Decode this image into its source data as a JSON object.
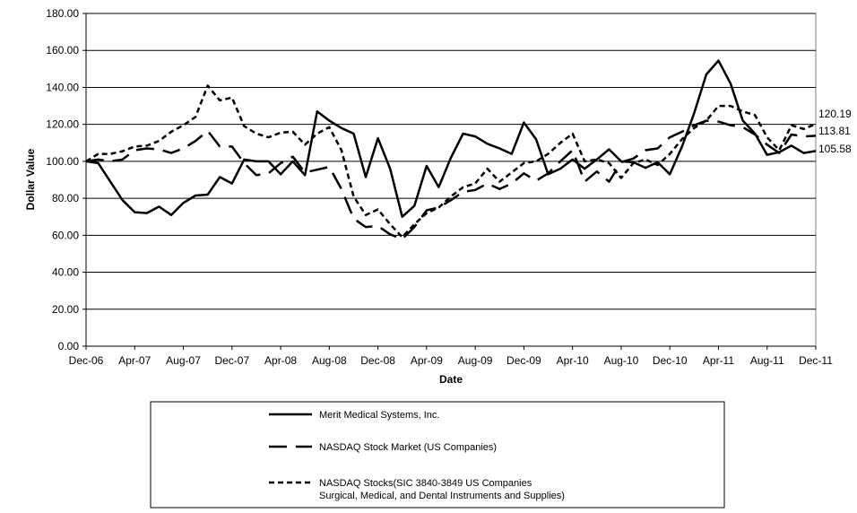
{
  "chart_data": {
    "type": "line",
    "xlabel": "Date",
    "ylabel": "Dollar Value",
    "ylim": [
      0,
      180
    ],
    "yticks": [
      "0.00",
      "20.00",
      "40.00",
      "60.00",
      "80.00",
      "100.00",
      "120.00",
      "140.00",
      "160.00",
      "180.00"
    ],
    "xtick_labels": [
      "Dec-06",
      "Apr-07",
      "Aug-07",
      "Dec-07",
      "Apr-08",
      "Aug-08",
      "Dec-08",
      "Apr-09",
      "Aug-09",
      "Dec-09",
      "Apr-10",
      "Aug-10",
      "Dec-10",
      "Apr-11",
      "Aug-11",
      "Dec-11"
    ],
    "grid": "horizontal",
    "legend_position": "bottom",
    "x": [
      "Dec-06",
      "Jan-07",
      "Feb-07",
      "Mar-07",
      "Apr-07",
      "May-07",
      "Jun-07",
      "Jul-07",
      "Aug-07",
      "Sep-07",
      "Oct-07",
      "Nov-07",
      "Dec-07",
      "Jan-08",
      "Feb-08",
      "Mar-08",
      "Apr-08",
      "May-08",
      "Jun-08",
      "Jul-08",
      "Aug-08",
      "Sep-08",
      "Oct-08",
      "Nov-08",
      "Dec-08",
      "Jan-09",
      "Feb-09",
      "Mar-09",
      "Apr-09",
      "May-09",
      "Jun-09",
      "Jul-09",
      "Aug-09",
      "Sep-09",
      "Oct-09",
      "Nov-09",
      "Dec-09",
      "Jan-10",
      "Feb-10",
      "Mar-10",
      "Apr-10",
      "May-10",
      "Jun-10",
      "Jul-10",
      "Aug-10",
      "Sep-10",
      "Oct-10",
      "Nov-10",
      "Dec-10",
      "Jan-11",
      "Feb-11",
      "Mar-11",
      "Apr-11",
      "May-11",
      "Jun-11",
      "Jul-11",
      "Aug-11",
      "Sep-11",
      "Oct-11",
      "Nov-11",
      "Dec-11"
    ],
    "series": [
      {
        "name": "Merit Medical Systems, Inc.",
        "style": "solid",
        "values": [
          100,
          99,
          89,
          79,
          72.5,
          72,
          75.5,
          71,
          77.5,
          81.5,
          82,
          91.5,
          88,
          101,
          100,
          100,
          93,
          100,
          92.5,
          127,
          122,
          118,
          115,
          91.5,
          112.5,
          96,
          70,
          76,
          97.5,
          86,
          102,
          115,
          113.5,
          109.5,
          107,
          104,
          121,
          112,
          93,
          96,
          101,
          96,
          101,
          106.5,
          100,
          99.5,
          96.5,
          99.5,
          93,
          108,
          126,
          147,
          154.5,
          142,
          122,
          115,
          103.5,
          105,
          108.5,
          104.5,
          105.58
        ]
      },
      {
        "name": "NASDAQ Stock Market (US Companies)",
        "style": "dashed",
        "values": [
          100,
          101,
          100,
          101,
          106,
          107,
          106.5,
          104.5,
          107,
          111,
          116.5,
          108,
          108,
          99,
          92.5,
          93.5,
          99,
          102.5,
          94,
          95.5,
          97,
          85,
          69,
          64.5,
          65,
          60.5,
          58,
          64.5,
          73.5,
          75,
          79,
          83.5,
          84.5,
          88,
          85,
          88,
          93.5,
          89.5,
          93.5,
          100,
          106,
          89,
          94.5,
          89,
          99.5,
          101.5,
          106,
          107,
          113,
          116,
          119.5,
          122,
          121.5,
          119.5,
          118.5,
          114.5,
          109,
          104.5,
          114.5,
          113.5,
          113.81
        ]
      },
      {
        "name": "NASDAQ Stocks(SIC  3840-3849 US Companies\nSurgical, Medical, and Dental Instruments and Supplies)",
        "style": "dotted",
        "values": [
          100,
          104,
          104,
          105.5,
          108,
          108.5,
          111,
          116,
          119.5,
          124,
          141,
          133,
          134.5,
          119,
          115,
          113,
          115.5,
          116,
          109,
          115,
          118.5,
          106,
          81,
          71,
          74,
          66,
          59,
          66,
          72,
          75,
          81,
          86,
          88,
          96,
          89,
          94,
          99,
          100,
          104,
          110,
          115,
          100,
          101,
          99,
          91,
          99,
          101,
          98,
          104,
          112,
          118,
          122,
          130,
          130,
          127,
          125,
          113,
          106,
          119.5,
          117.5,
          120.19
        ]
      }
    ],
    "end_labels": [
      "120.19",
      "113.81",
      "105.58"
    ]
  }
}
